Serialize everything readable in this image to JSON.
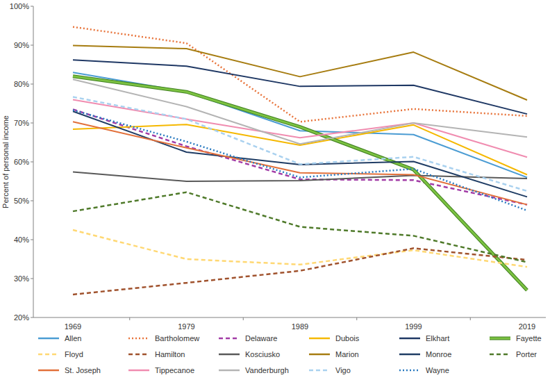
{
  "chart_data": {
    "type": "line",
    "y_label": "Percent of personal income",
    "categories": [
      "1969",
      "1979",
      "1989",
      "1999",
      "2019"
    ],
    "ylim": [
      20,
      100
    ],
    "yticks": [
      {
        "value": 20,
        "label": "20%"
      },
      {
        "value": 30,
        "label": "30%"
      },
      {
        "value": 40,
        "label": "40%"
      },
      {
        "value": 50,
        "label": "50%"
      },
      {
        "value": 60,
        "label": "60%"
      },
      {
        "value": 70,
        "label": "70%"
      },
      {
        "value": 80,
        "label": "80%"
      },
      {
        "value": 90,
        "label": "90%"
      },
      {
        "value": 100,
        "label": "100%"
      }
    ],
    "grid": false,
    "legend": "bottom",
    "series": [
      {
        "name": "Allen",
        "color": "#4b9cd3",
        "line_style": "solid",
        "values": [
          83,
          78,
          68,
          67,
          56
        ]
      },
      {
        "name": "Bartholomew",
        "color": "#e8743b",
        "line_style": "dotted",
        "values": [
          94.7,
          90.5,
          70.3,
          73.6,
          71.8
        ]
      },
      {
        "name": "Delaware",
        "color": "#a23ca6",
        "line_style": "dashed",
        "values": [
          73.5,
          64,
          55.5,
          55.3,
          49
        ]
      },
      {
        "name": "Dubois",
        "color": "#f5b800",
        "line_style": "solid",
        "values": [
          68.4,
          69.6,
          64.3,
          69.5,
          56.7
        ]
      },
      {
        "name": "Elkhart",
        "color": "#1f3864",
        "line_style": "solid",
        "values": [
          86.2,
          84.6,
          79.4,
          79.7,
          72.3
        ]
      },
      {
        "name": "Fayette",
        "color": "#7cc242",
        "line_style": "double",
        "values": [
          82,
          78,
          69,
          58,
          27
        ]
      },
      {
        "name": "Floyd",
        "color": "#ffd873",
        "line_style": "dashed",
        "values": [
          42.5,
          35,
          33.6,
          37.3,
          33
        ]
      },
      {
        "name": "Hamilton",
        "color": "#a0522d",
        "line_style": "dashed",
        "values": [
          25.9,
          28.9,
          32,
          37.8,
          34.8
        ]
      },
      {
        "name": "Kosciusko",
        "color": "#595959",
        "line_style": "solid",
        "values": [
          57.4,
          55,
          55.2,
          56.5,
          55.7
        ]
      },
      {
        "name": "Marion",
        "color": "#a67c10",
        "line_style": "solid",
        "values": [
          89.9,
          89.1,
          81.9,
          88.2,
          75.9
        ]
      },
      {
        "name": "Monroe",
        "color": "#1f3c64",
        "line_style": "solid",
        "values": [
          73,
          62.5,
          59.3,
          60.1,
          51
        ]
      },
      {
        "name": "Porter",
        "color": "#4f7a2a",
        "line_style": "dashed",
        "values": [
          47.3,
          52.2,
          43.3,
          41,
          34.2
        ]
      },
      {
        "name": "St. Joseph",
        "color": "#e2703a",
        "line_style": "solid",
        "values": [
          70.3,
          63.6,
          57.2,
          56.7,
          49
        ]
      },
      {
        "name": "Tippecanoe",
        "color": "#f08cb0",
        "line_style": "solid",
        "values": [
          76,
          71,
          66.2,
          70,
          61.2
        ]
      },
      {
        "name": "Vanderburgh",
        "color": "#b4b4b4",
        "line_style": "solid",
        "values": [
          81.2,
          74.2,
          64.6,
          70,
          66.4
        ]
      },
      {
        "name": "Vigo",
        "color": "#a9d1ef",
        "line_style": "dashed",
        "values": [
          76.7,
          71,
          59.4,
          61.3,
          52.5
        ]
      },
      {
        "name": "Wayne",
        "color": "#2a7ac0",
        "line_style": "dotted",
        "values": [
          73.3,
          65.2,
          56,
          58.2,
          47.5
        ]
      }
    ]
  }
}
